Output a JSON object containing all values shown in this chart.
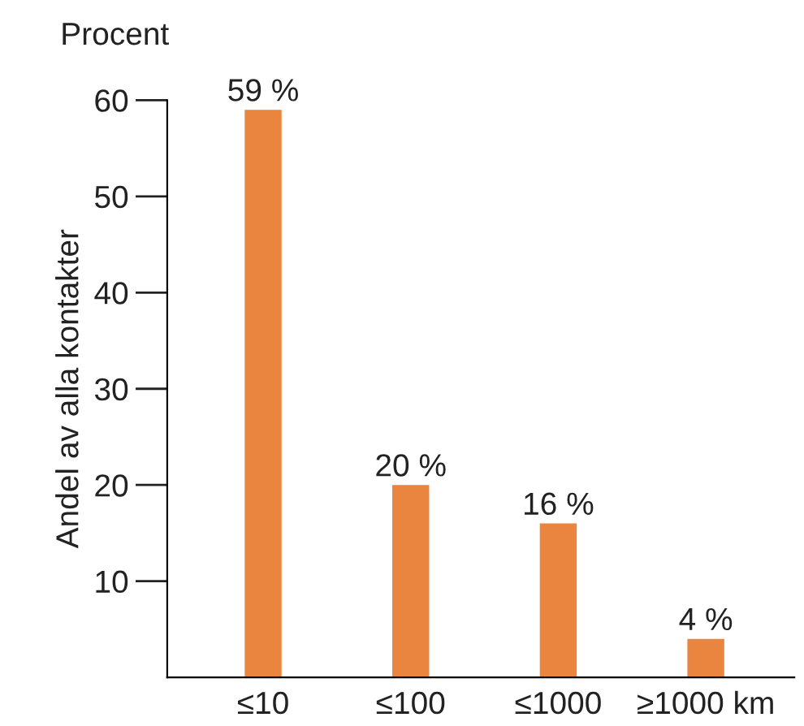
{
  "chart_data": {
    "type": "bar",
    "ylabel": "Andel av alla kontakter",
    "annotations": [
      "Procent"
    ],
    "categories": [
      "≤10",
      "≤100",
      "≤1000",
      "≥1000 km"
    ],
    "values": [
      59,
      20,
      16,
      4
    ],
    "value_labels": [
      "59 %",
      "20 %",
      "16 %",
      "4 %"
    ],
    "color": "#ea8540",
    "ylim": [
      0,
      60
    ],
    "yticks": [
      10,
      20,
      30,
      40,
      50,
      60
    ],
    "grid": false
  }
}
